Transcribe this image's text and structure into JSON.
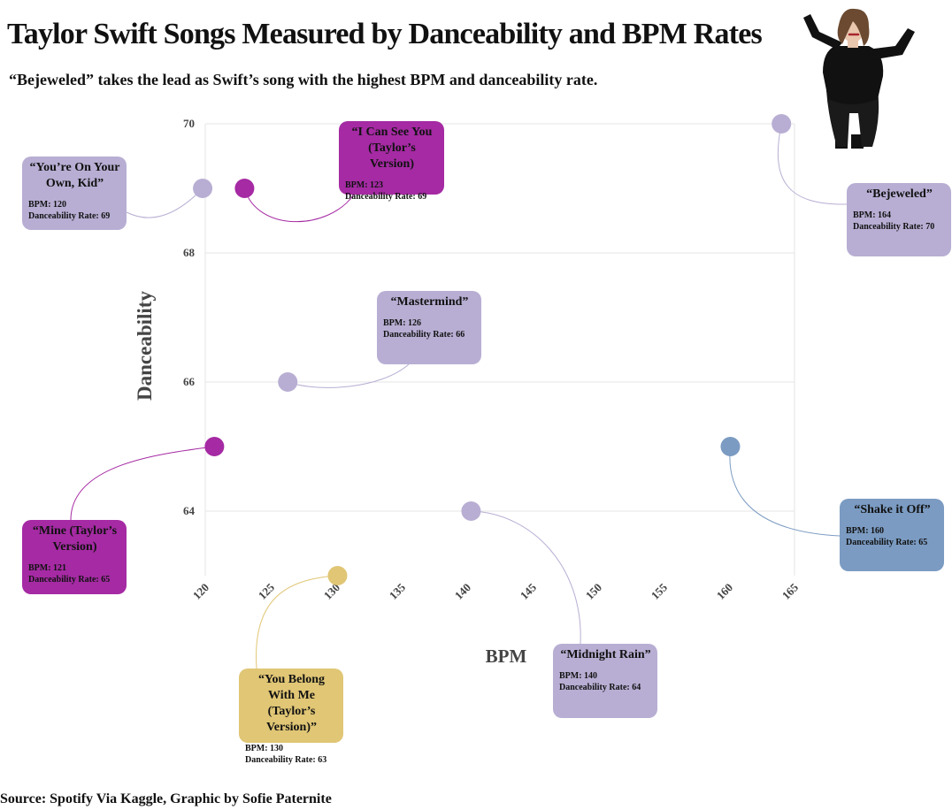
{
  "header": {
    "title": "Taylor Swift Songs Measured by Danceability and BPM Rates",
    "subtitle": "“Bejeweled” takes the lead as Swift’s  song with the highest BPM and danceability rate."
  },
  "photo": {
    "icon": "singer-photo-icon"
  },
  "footer": {
    "source": "Source: Spotify Via Kaggle, Graphic by Sofie Paternite"
  },
  "colors": {
    "lavender": "#b8aed3",
    "magenta": "#a52aa3",
    "blue": "#7b9bc2",
    "gold": "#e0c675",
    "grid": "#e6e6e6",
    "tick_text": "#444444",
    "axis_title": "#444444"
  },
  "chart_data": {
    "type": "scatter",
    "title": "Taylor Swift Songs Measured by Danceability and BPM Rates",
    "subtitle": "“Bejeweled” takes the lead as Swift’s  song with the highest BPM and danceability rate.",
    "xlabel": "BPM",
    "ylabel": "Danceability",
    "xlim": [
      120,
      165
    ],
    "ylim": [
      63,
      70
    ],
    "xticks": [
      "120",
      "125",
      "130",
      "135",
      "140",
      "145",
      "150",
      "155",
      "160",
      "165"
    ],
    "yticks": [
      "64",
      "66",
      "68",
      "70"
    ],
    "grid": true,
    "points": [
      {
        "id": "youre-on-your-own-kid",
        "x": 119.8,
        "y": 69,
        "color": "lavender",
        "title": "“You’re On Your Own, Kid”",
        "bpm_label": "BPM: 120",
        "dance_label": "Danceability Rate: 69"
      },
      {
        "id": "i-can-see-you",
        "x": 123,
        "y": 69,
        "color": "magenta",
        "title": "“I Can See You (Taylor’s Version)",
        "bpm_label": "BPM: 123",
        "dance_label": "Danceability Rate: 69"
      },
      {
        "id": "bejeweled",
        "x": 164,
        "y": 70,
        "color": "lavender",
        "title": "“Bejeweled”",
        "bpm_label": "BPM: 164",
        "dance_label": "Danceability Rate: 70"
      },
      {
        "id": "mastermind",
        "x": 126.3,
        "y": 66,
        "color": "lavender",
        "title": "“Mastermind”",
        "bpm_label": "BPM: 126",
        "dance_label": "Danceability Rate:  66"
      },
      {
        "id": "mine",
        "x": 120.7,
        "y": 65,
        "color": "magenta",
        "title": "“Mine (Taylor’s Version)",
        "bpm_label": "BPM: 121",
        "dance_label": "Danceability Rate: 65"
      },
      {
        "id": "shake-it-off",
        "x": 160.1,
        "y": 65,
        "color": "blue",
        "title": "“Shake it Off”",
        "bpm_label": "BPM: 160",
        "dance_label": "Danceability Rate: 65"
      },
      {
        "id": "midnight-rain",
        "x": 140.3,
        "y": 64,
        "color": "lavender",
        "title": "“Midnight Rain”",
        "bpm_label": "BPM: 140",
        "dance_label": "Danceability Rate: 64"
      },
      {
        "id": "you-belong-with-me",
        "x": 130.1,
        "y": 63,
        "color": "gold",
        "title": "“You Belong With Me (Taylor’s Version)”",
        "bpm_label": "BPM: 130",
        "dance_label": "Danceability Rate: 63"
      }
    ]
  }
}
